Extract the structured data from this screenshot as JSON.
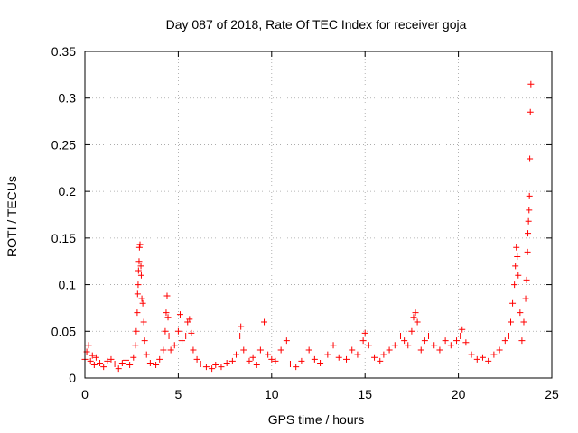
{
  "chart_data": {
    "type": "scatter",
    "title": "Day 087 of 2018, Rate Of TEC Index for receiver goja",
    "xlabel": "GPS time / hours",
    "ylabel": "ROTI / TECUs",
    "xlim": [
      0,
      25
    ],
    "ylim": [
      0,
      0.35
    ],
    "xticks": [
      0,
      5,
      10,
      15,
      20,
      25
    ],
    "xtick_labels": [
      "0",
      "5",
      "10",
      "15",
      "20",
      "25"
    ],
    "yticks": [
      0,
      0.05,
      0.1,
      0.15,
      0.2,
      0.25,
      0.3,
      0.35
    ],
    "ytick_labels": [
      "0",
      "0.05",
      "0.1",
      "0.15",
      "0.2",
      "0.25",
      "0.3",
      "0.35"
    ],
    "grid": true,
    "marker": "+",
    "series": [
      {
        "name": "ROTI",
        "color": "#ff0000",
        "points": [
          [
            0.0,
            0.02
          ],
          [
            0.1,
            0.028
          ],
          [
            0.2,
            0.035
          ],
          [
            0.3,
            0.018
          ],
          [
            0.4,
            0.024
          ],
          [
            0.5,
            0.014
          ],
          [
            0.6,
            0.022
          ],
          [
            0.8,
            0.016
          ],
          [
            1.0,
            0.012
          ],
          [
            1.2,
            0.018
          ],
          [
            1.4,
            0.02
          ],
          [
            1.6,
            0.015
          ],
          [
            1.8,
            0.01
          ],
          [
            2.0,
            0.016
          ],
          [
            2.2,
            0.019
          ],
          [
            2.4,
            0.014
          ],
          [
            2.6,
            0.022
          ],
          [
            2.7,
            0.035
          ],
          [
            2.75,
            0.05
          ],
          [
            2.8,
            0.07
          ],
          [
            2.82,
            0.09
          ],
          [
            2.85,
            0.1
          ],
          [
            2.87,
            0.115
          ],
          [
            2.9,
            0.125
          ],
          [
            2.92,
            0.14
          ],
          [
            2.95,
            0.143
          ],
          [
            3.0,
            0.12
          ],
          [
            3.02,
            0.11
          ],
          [
            3.05,
            0.085
          ],
          [
            3.1,
            0.08
          ],
          [
            3.15,
            0.06
          ],
          [
            3.2,
            0.04
          ],
          [
            3.3,
            0.025
          ],
          [
            3.5,
            0.016
          ],
          [
            3.8,
            0.014
          ],
          [
            4.0,
            0.02
          ],
          [
            4.2,
            0.03
          ],
          [
            4.3,
            0.05
          ],
          [
            4.35,
            0.07
          ],
          [
            4.4,
            0.088
          ],
          [
            4.45,
            0.065
          ],
          [
            4.5,
            0.045
          ],
          [
            4.6,
            0.03
          ],
          [
            4.8,
            0.035
          ],
          [
            5.0,
            0.05
          ],
          [
            5.1,
            0.068
          ],
          [
            5.2,
            0.04
          ],
          [
            5.4,
            0.045
          ],
          [
            5.5,
            0.06
          ],
          [
            5.6,
            0.063
          ],
          [
            5.7,
            0.048
          ],
          [
            5.8,
            0.03
          ],
          [
            6.0,
            0.02
          ],
          [
            6.2,
            0.015
          ],
          [
            6.5,
            0.012
          ],
          [
            6.8,
            0.01
          ],
          [
            7.0,
            0.014
          ],
          [
            7.3,
            0.012
          ],
          [
            7.6,
            0.016
          ],
          [
            7.9,
            0.018
          ],
          [
            8.1,
            0.025
          ],
          [
            8.3,
            0.045
          ],
          [
            8.35,
            0.055
          ],
          [
            8.5,
            0.03
          ],
          [
            8.8,
            0.018
          ],
          [
            9.0,
            0.022
          ],
          [
            9.2,
            0.014
          ],
          [
            9.4,
            0.03
          ],
          [
            9.6,
            0.06
          ],
          [
            9.8,
            0.025
          ],
          [
            10.0,
            0.02
          ],
          [
            10.2,
            0.018
          ],
          [
            10.5,
            0.03
          ],
          [
            10.8,
            0.04
          ],
          [
            11.0,
            0.015
          ],
          [
            11.3,
            0.012
          ],
          [
            11.6,
            0.018
          ],
          [
            12.0,
            0.03
          ],
          [
            12.3,
            0.02
          ],
          [
            12.6,
            0.016
          ],
          [
            13.0,
            0.025
          ],
          [
            13.3,
            0.035
          ],
          [
            13.6,
            0.022
          ],
          [
            14.0,
            0.02
          ],
          [
            14.3,
            0.03
          ],
          [
            14.6,
            0.025
          ],
          [
            14.9,
            0.04
          ],
          [
            15.0,
            0.048
          ],
          [
            15.2,
            0.035
          ],
          [
            15.5,
            0.022
          ],
          [
            15.8,
            0.018
          ],
          [
            16.0,
            0.025
          ],
          [
            16.3,
            0.03
          ],
          [
            16.6,
            0.035
          ],
          [
            16.9,
            0.045
          ],
          [
            17.1,
            0.04
          ],
          [
            17.3,
            0.035
          ],
          [
            17.5,
            0.05
          ],
          [
            17.6,
            0.065
          ],
          [
            17.7,
            0.07
          ],
          [
            17.8,
            0.06
          ],
          [
            18.0,
            0.03
          ],
          [
            18.2,
            0.04
          ],
          [
            18.4,
            0.045
          ],
          [
            18.7,
            0.035
          ],
          [
            19.0,
            0.03
          ],
          [
            19.3,
            0.04
          ],
          [
            19.6,
            0.035
          ],
          [
            19.9,
            0.04
          ],
          [
            20.1,
            0.045
          ],
          [
            20.2,
            0.052
          ],
          [
            20.4,
            0.038
          ],
          [
            20.7,
            0.025
          ],
          [
            21.0,
            0.02
          ],
          [
            21.3,
            0.022
          ],
          [
            21.6,
            0.018
          ],
          [
            21.9,
            0.025
          ],
          [
            22.2,
            0.03
          ],
          [
            22.5,
            0.04
          ],
          [
            22.7,
            0.045
          ],
          [
            22.8,
            0.06
          ],
          [
            22.9,
            0.08
          ],
          [
            23.0,
            0.1
          ],
          [
            23.05,
            0.12
          ],
          [
            23.1,
            0.14
          ],
          [
            23.15,
            0.13
          ],
          [
            23.2,
            0.11
          ],
          [
            23.3,
            0.07
          ],
          [
            23.4,
            0.04
          ],
          [
            23.5,
            0.06
          ],
          [
            23.6,
            0.085
          ],
          [
            23.65,
            0.105
          ],
          [
            23.7,
            0.135
          ],
          [
            23.72,
            0.155
          ],
          [
            23.75,
            0.168
          ],
          [
            23.78,
            0.18
          ],
          [
            23.8,
            0.195
          ],
          [
            23.82,
            0.235
          ],
          [
            23.85,
            0.285
          ],
          [
            23.88,
            0.315
          ]
        ]
      }
    ]
  }
}
